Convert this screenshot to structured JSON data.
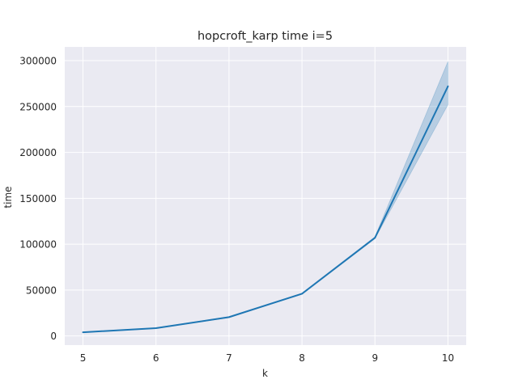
{
  "chart_data": {
    "type": "line",
    "title": "hopcroft_karp time i=5",
    "xlabel": "k",
    "ylabel": "time",
    "x": [
      5,
      6,
      7,
      8,
      9,
      10
    ],
    "xlim": [
      4.75,
      10.25
    ],
    "ylim": [
      -10000,
      315000
    ],
    "xticks": [
      5,
      6,
      7,
      8,
      9,
      10
    ],
    "yticks": [
      0,
      50000,
      100000,
      150000,
      200000,
      250000,
      300000
    ],
    "grid": true,
    "legend": "none",
    "series": [
      {
        "values": [
          4000,
          8500,
          20500,
          46000,
          107000,
          272000
        ],
        "ci_lower": [
          3700,
          8200,
          20000,
          45500,
          106000,
          252000
        ],
        "ci_upper": [
          4300,
          8800,
          21000,
          46500,
          108000,
          299000
        ],
        "color": "#1f77b4"
      }
    ],
    "background_color": "#eaeaf2",
    "grid_color": "#ffffff"
  }
}
